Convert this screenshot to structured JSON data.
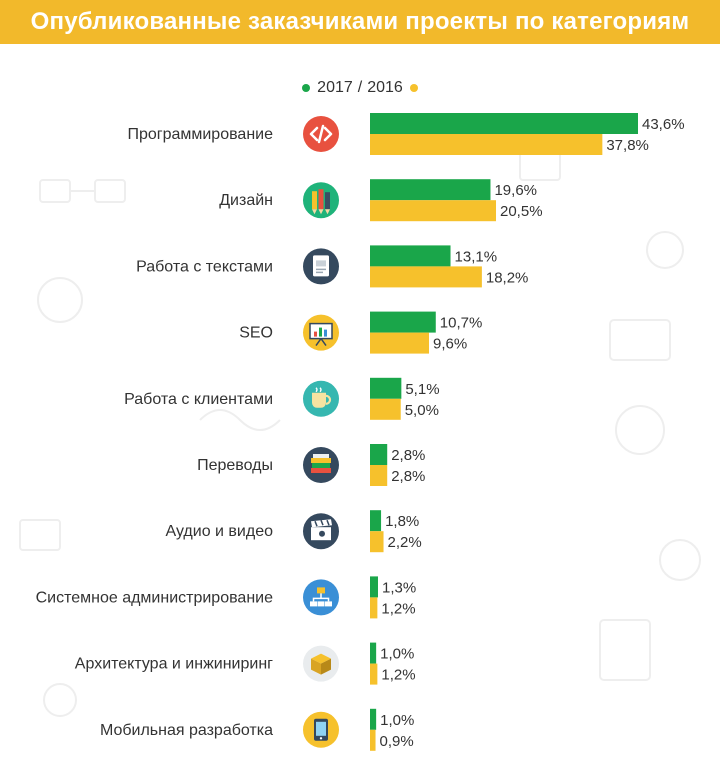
{
  "header": {
    "title": "Опубликованные заказчиками проекты по категориям"
  },
  "legend": {
    "series_2017": "2017",
    "separator": "/",
    "series_2016": "2016"
  },
  "colors": {
    "header_bg": "#f2b92b",
    "series_2017": "#1aa64a",
    "series_2016": "#f6c12c"
  },
  "chart_data": {
    "type": "bar",
    "orientation": "horizontal",
    "title": "Опубликованные заказчиками проекты по категориям",
    "categories": [
      "Программирование",
      "Дизайн",
      "Работа с текстами",
      "SEO",
      "Работа с клиентами",
      "Переводы",
      "Аудио и видео",
      "Системное администрирование",
      "Архитектура и инжиниринг",
      "Мобильная разработка"
    ],
    "icons": [
      "code-icon",
      "pencils-icon",
      "document-icon",
      "presentation-chart-icon",
      "coffee-cup-icon",
      "books-icon",
      "clapperboard-icon",
      "network-icon",
      "cube-icon",
      "mobile-phone-icon"
    ],
    "series": [
      {
        "name": "2017",
        "color": "#1aa64a",
        "values": [
          43.6,
          19.6,
          13.1,
          10.7,
          5.1,
          2.8,
          1.8,
          1.3,
          1.0,
          1.0
        ],
        "labels": [
          "43,6%",
          "19,6%",
          "13,1%",
          "10,7%",
          "5,1%",
          "2,8%",
          "1,8%",
          "1,3%",
          "1,0%",
          "1,0%"
        ]
      },
      {
        "name": "2016",
        "color": "#f6c12c",
        "values": [
          37.8,
          20.5,
          18.2,
          9.6,
          5.0,
          2.8,
          2.2,
          1.2,
          1.2,
          0.9
        ],
        "labels": [
          "37,8%",
          "20,5%",
          "18,2%",
          "9,6%",
          "5,0%",
          "2,8%",
          "2,2%",
          "1,2%",
          "1,2%",
          "0,9%"
        ]
      }
    ],
    "xlim": [
      0,
      43.6
    ],
    "grid": false,
    "legend_position": "top-center"
  }
}
